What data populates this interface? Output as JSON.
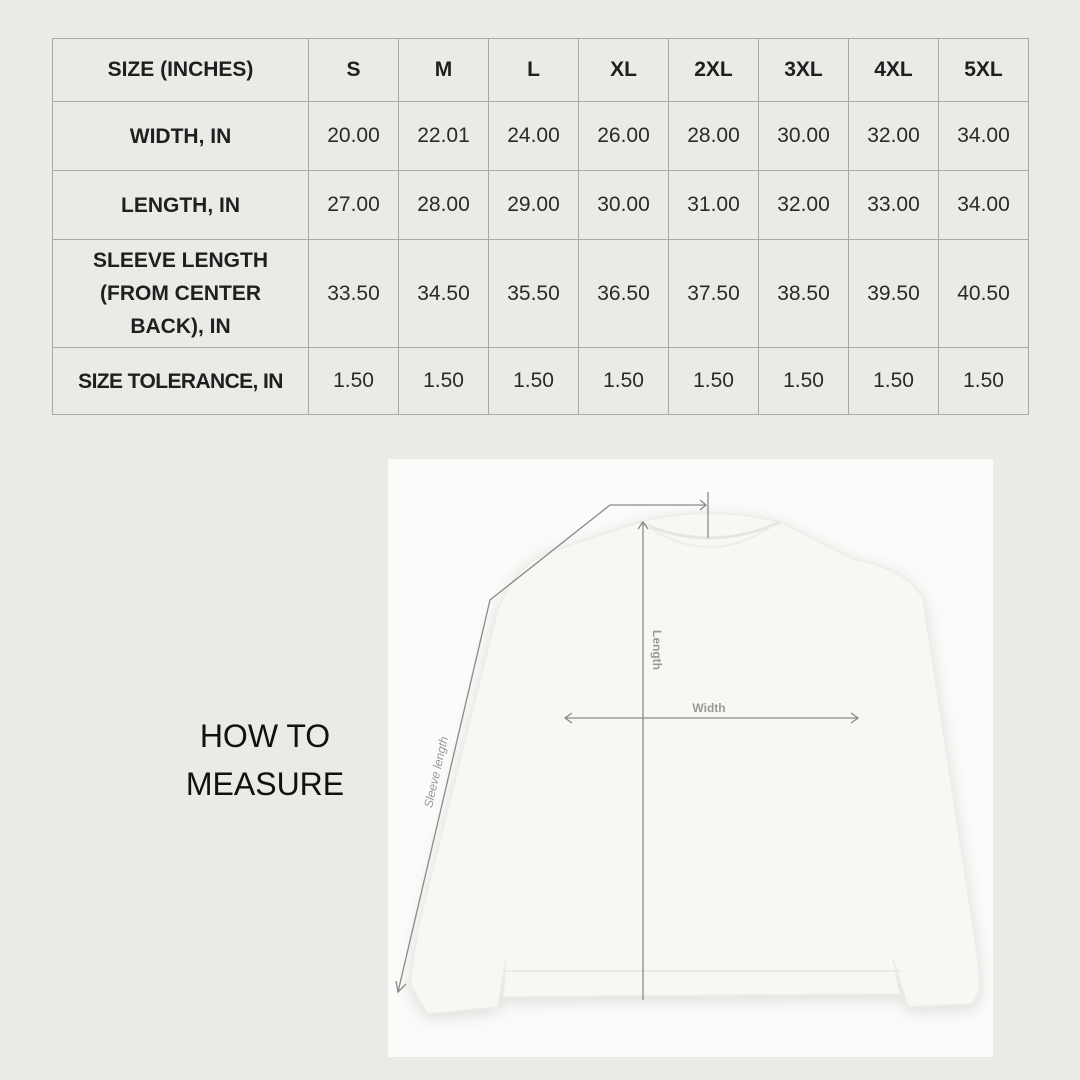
{
  "table": {
    "header": [
      "SIZE (INCHES)",
      "S",
      "M",
      "L",
      "XL",
      "2XL",
      "3XL",
      "4XL",
      "5XL"
    ],
    "rows": [
      {
        "label": "WIDTH, IN",
        "values": [
          "20.00",
          "22.01",
          "24.00",
          "26.00",
          "28.00",
          "30.00",
          "32.00",
          "34.00"
        ]
      },
      {
        "label": "LENGTH, IN",
        "values": [
          "27.00",
          "28.00",
          "29.00",
          "30.00",
          "31.00",
          "32.00",
          "33.00",
          "34.00"
        ]
      },
      {
        "label": "SLEEVE LENGTH (FROM CENTER BACK), IN",
        "values": [
          "33.50",
          "34.50",
          "35.50",
          "36.50",
          "37.50",
          "38.50",
          "39.50",
          "40.50"
        ]
      },
      {
        "label": "SIZE TOLERANCE, IN",
        "values": [
          "1.50",
          "1.50",
          "1.50",
          "1.50",
          "1.50",
          "1.50",
          "1.50",
          "1.50"
        ]
      }
    ]
  },
  "how_to_measure": "HOW TO MEASURE",
  "diagram": {
    "width_label": "Width",
    "length_label": "Length",
    "sleeve_label": "Sleeve length"
  }
}
